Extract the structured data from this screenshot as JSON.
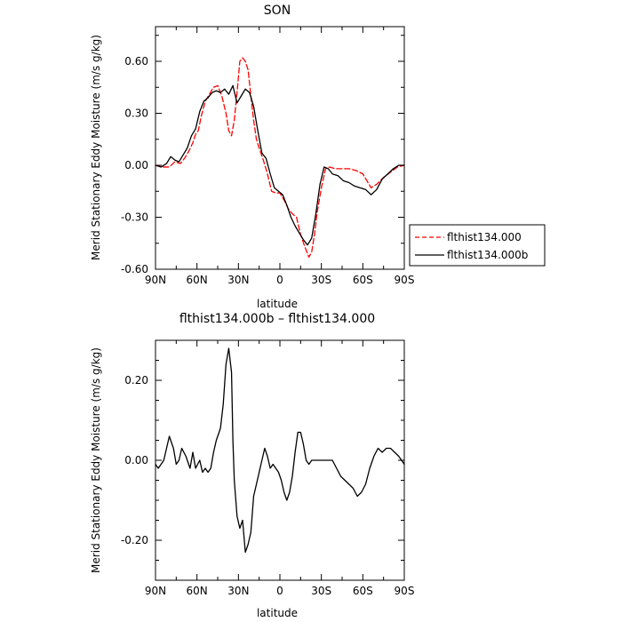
{
  "chart_data": [
    {
      "type": "line",
      "title": "SON",
      "xlabel": "latitude",
      "ylabel": "Merid Stationary Eddy Moisture (m/s g/kg)",
      "xlim": [
        90,
        -90
      ],
      "ylim": [
        -0.6,
        0.8
      ],
      "x_ticks": [
        90,
        60,
        30,
        0,
        -30,
        -60,
        -90
      ],
      "x_tick_labels": [
        "90N",
        "60N",
        "30N",
        "0",
        "30S",
        "60S",
        "90S"
      ],
      "y_ticks": [
        -0.6,
        -0.3,
        0.0,
        0.3,
        0.6
      ],
      "y_tick_labels": [
        "-0.60",
        "-0.30",
        "0.00",
        "0.30",
        "0.60"
      ],
      "grid": false,
      "legend": "right",
      "series": [
        {
          "name": "flthist134.000",
          "color": "#ff0000",
          "style": "dashed",
          "x": [
            90,
            85,
            80,
            76,
            72,
            69,
            66,
            63,
            61,
            59,
            57,
            54,
            51,
            48,
            45,
            42,
            39,
            37,
            35,
            33,
            31,
            29,
            27,
            25,
            23,
            21,
            19,
            17,
            15,
            12,
            9,
            6,
            3,
            0,
            -3,
            -6,
            -9,
            -12,
            -15,
            -18,
            -21,
            -23,
            -25,
            -27,
            -30,
            -33,
            -36,
            -40,
            -45,
            -50,
            -55,
            -60,
            -63,
            -66,
            -70,
            -75,
            -80,
            -85,
            -90
          ],
          "y": [
            0.0,
            -0.01,
            -0.01,
            0.02,
            0.01,
            0.04,
            0.08,
            0.13,
            0.18,
            0.2,
            0.28,
            0.37,
            0.41,
            0.45,
            0.46,
            0.4,
            0.3,
            0.2,
            0.17,
            0.26,
            0.42,
            0.6,
            0.62,
            0.6,
            0.55,
            0.4,
            0.26,
            0.15,
            0.1,
            0.03,
            -0.05,
            -0.15,
            -0.16,
            -0.16,
            -0.2,
            -0.25,
            -0.28,
            -0.3,
            -0.4,
            -0.47,
            -0.53,
            -0.5,
            -0.4,
            -0.27,
            -0.13,
            -0.02,
            -0.01,
            -0.02,
            -0.02,
            -0.02,
            -0.03,
            -0.05,
            -0.09,
            -0.13,
            -0.11,
            -0.07,
            -0.04,
            -0.01,
            0.0
          ]
        },
        {
          "name": "flthist134.000b",
          "color": "#000000",
          "style": "solid",
          "x": [
            90,
            86,
            82,
            79,
            76,
            73,
            70,
            67,
            64,
            61,
            58,
            55,
            52,
            49,
            46,
            43,
            40,
            37,
            34,
            31,
            28,
            25,
            22,
            19,
            16,
            13,
            10,
            7,
            4,
            1,
            -2,
            -5,
            -8,
            -11,
            -14,
            -17,
            -20,
            -23,
            -26,
            -29,
            -32,
            -35,
            -38,
            -42,
            -46,
            -50,
            -54,
            -58,
            -62,
            -66,
            -70,
            -74,
            -78,
            -82,
            -86,
            -90
          ],
          "y": [
            0.0,
            -0.01,
            0.01,
            0.05,
            0.03,
            0.02,
            0.06,
            0.1,
            0.17,
            0.21,
            0.31,
            0.37,
            0.39,
            0.42,
            0.43,
            0.42,
            0.44,
            0.41,
            0.46,
            0.36,
            0.4,
            0.44,
            0.42,
            0.34,
            0.2,
            0.07,
            0.04,
            -0.05,
            -0.13,
            -0.15,
            -0.17,
            -0.23,
            -0.3,
            -0.35,
            -0.39,
            -0.43,
            -0.46,
            -0.42,
            -0.28,
            -0.11,
            -0.01,
            -0.02,
            -0.05,
            -0.06,
            -0.09,
            -0.1,
            -0.12,
            -0.13,
            -0.14,
            -0.17,
            -0.14,
            -0.08,
            -0.05,
            -0.02,
            0.0,
            0.0
          ]
        }
      ]
    },
    {
      "type": "line",
      "title": "flthist134.000b – flthist134.000",
      "xlabel": "latitude",
      "ylabel": "Merid Stationary Eddy Moisture (m/s g/kg)",
      "xlim": [
        90,
        -90
      ],
      "ylim": [
        -0.3,
        0.3
      ],
      "x_ticks": [
        90,
        60,
        30,
        0,
        -30,
        -60,
        -90
      ],
      "x_tick_labels": [
        "90N",
        "60N",
        "30N",
        "0",
        "30S",
        "60S",
        "90S"
      ],
      "y_ticks": [
        -0.2,
        0.0,
        0.2
      ],
      "y_tick_labels": [
        "-0.20",
        "0.00",
        "0.20"
      ],
      "grid": false,
      "series": [
        {
          "color": "#000000",
          "style": "solid",
          "x": [
            90,
            88,
            86,
            84,
            82,
            80,
            77,
            75,
            73,
            71,
            68,
            65,
            63,
            61,
            58,
            56,
            54,
            52,
            50,
            48,
            46,
            43,
            41,
            39,
            37,
            35,
            34,
            33,
            31,
            29,
            27,
            25,
            23,
            21,
            19,
            17,
            15,
            13,
            11,
            9,
            7,
            5,
            3,
            1,
            -1,
            -3,
            -5,
            -7,
            -9,
            -11,
            -13,
            -15,
            -17,
            -19,
            -21,
            -23,
            -25,
            -27,
            -29,
            -31,
            -33,
            -35,
            -38,
            -41,
            -44,
            -47,
            -50,
            -53,
            -56,
            -59,
            -62,
            -65,
            -68,
            -71,
            -74,
            -77,
            -80,
            -83,
            -86,
            -88,
            -90
          ],
          "y": [
            -0.01,
            -0.02,
            -0.01,
            0.0,
            0.03,
            0.06,
            0.03,
            -0.01,
            0.0,
            0.03,
            0.01,
            -0.02,
            0.02,
            -0.02,
            0.0,
            -0.03,
            -0.02,
            -0.03,
            -0.02,
            0.02,
            0.05,
            0.08,
            0.14,
            0.24,
            0.28,
            0.22,
            0.05,
            -0.05,
            -0.14,
            -0.17,
            -0.15,
            -0.23,
            -0.21,
            -0.18,
            -0.09,
            -0.06,
            -0.03,
            0.0,
            0.03,
            0.01,
            -0.02,
            -0.01,
            -0.02,
            -0.03,
            -0.05,
            -0.08,
            -0.1,
            -0.08,
            -0.04,
            0.02,
            0.07,
            0.07,
            0.04,
            0.0,
            -0.01,
            0.0,
            0.0,
            0.0,
            0.0,
            0.0,
            0.0,
            0.0,
            0.0,
            -0.02,
            -0.04,
            -0.05,
            -0.06,
            -0.07,
            -0.09,
            -0.08,
            -0.06,
            -0.02,
            0.01,
            0.03,
            0.02,
            0.03,
            0.03,
            0.02,
            0.01,
            0.0,
            -0.01
          ]
        }
      ]
    }
  ]
}
